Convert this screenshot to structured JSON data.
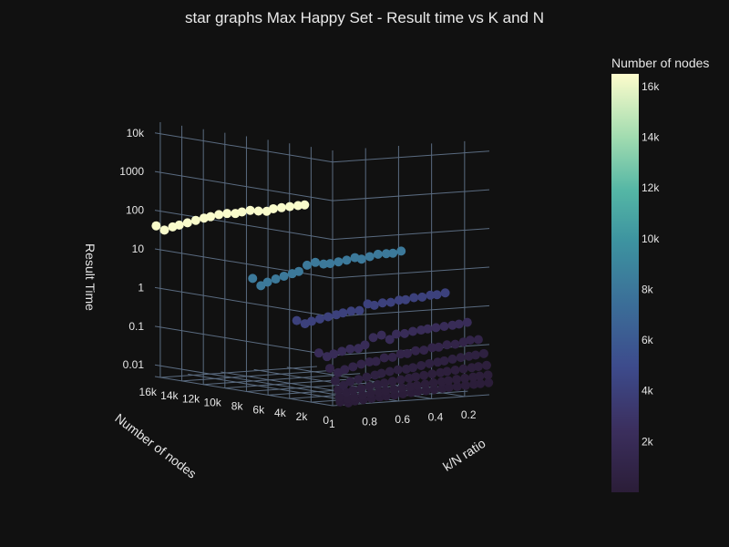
{
  "chart_data": {
    "type": "scatter3d",
    "title": "star graphs Max Happy Set - Result time vs K and N",
    "x_axis": {
      "label": "k/N ratio",
      "ticks": [
        "0.2",
        "0.4",
        "0.6",
        "0.8",
        "1"
      ]
    },
    "y_axis": {
      "label": "Number of nodes",
      "ticks": [
        "0",
        "2k",
        "4k",
        "6k",
        "8k",
        "10k",
        "12k",
        "14k",
        "16k"
      ]
    },
    "z_axis": {
      "label": "Result Time",
      "scale": "log",
      "ticks": [
        "0.01",
        "0.1",
        "1",
        "10",
        "100",
        "1000",
        "10k"
      ],
      "range": [
        0.005,
        20000
      ]
    },
    "colorbar": {
      "title": "Number of nodes",
      "ticks": [
        "2k",
        "4k",
        "6k",
        "8k",
        "10k",
        "12k",
        "14k",
        "16k"
      ],
      "range": [
        0,
        16500
      ]
    },
    "series": [
      {
        "n": 16384,
        "k_ratio": [
          1.0,
          0.95,
          0.9,
          0.86,
          0.81,
          0.76,
          0.71,
          0.67,
          0.62,
          0.57,
          0.52,
          0.48,
          0.43,
          0.38,
          0.33,
          0.29,
          0.24,
          0.19,
          0.14,
          0.1
        ],
        "time": [
          40,
          30,
          35,
          38,
          42,
          47,
          52,
          55,
          60,
          62,
          60,
          64,
          68,
          63,
          60,
          68,
          70,
          72,
          74,
          75
        ]
      },
      {
        "n": 8192,
        "k_ratio": [
          0.95,
          0.9,
          0.86,
          0.81,
          0.76,
          0.71,
          0.67,
          0.62,
          0.57,
          0.52,
          0.48,
          0.43,
          0.38,
          0.33,
          0.29,
          0.24,
          0.19,
          0.14,
          0.1,
          0.05
        ],
        "time": [
          4,
          2.5,
          3,
          3.5,
          4,
          4.5,
          5,
          7,
          8,
          7,
          7,
          7.5,
          8,
          9,
          8,
          9,
          10,
          10,
          10,
          11
        ]
      },
      {
        "n": 4096,
        "k_ratio": [
          0.95,
          0.9,
          0.86,
          0.81,
          0.76,
          0.71,
          0.67,
          0.62,
          0.57,
          0.52,
          0.48,
          0.43,
          0.38,
          0.33,
          0.29,
          0.24,
          0.19,
          0.14,
          0.1,
          0.05
        ],
        "time": [
          0.5,
          0.4,
          0.45,
          0.5,
          0.55,
          0.6,
          0.65,
          0.7,
          0.7,
          1.0,
          0.9,
          1.0,
          1.0,
          1.1,
          1.1,
          1.2,
          1.2,
          1.3,
          1.3,
          1.4
        ]
      },
      {
        "n": 2048,
        "k_ratio": [
          0.95,
          0.9,
          0.86,
          0.81,
          0.76,
          0.71,
          0.67,
          0.62,
          0.57,
          0.52,
          0.48,
          0.43,
          0.38,
          0.33,
          0.29,
          0.24,
          0.19,
          0.14,
          0.1,
          0.05
        ],
        "time": [
          0.09,
          0.07,
          0.08,
          0.09,
          0.1,
          0.1,
          0.12,
          0.18,
          0.2,
          0.15,
          0.2,
          0.2,
          0.22,
          0.23,
          0.24,
          0.25,
          0.26,
          0.27,
          0.28,
          0.3
        ]
      },
      {
        "n": 1024,
        "k_ratio": [
          0.95,
          0.9,
          0.86,
          0.81,
          0.76,
          0.71,
          0.67,
          0.62,
          0.57,
          0.52,
          0.48,
          0.43,
          0.38,
          0.33,
          0.29,
          0.24,
          0.19,
          0.14,
          0.1,
          0.05
        ],
        "time": [
          0.04,
          0.03,
          0.035,
          0.04,
          0.045,
          0.05,
          0.05,
          0.06,
          0.06,
          0.07,
          0.07,
          0.08,
          0.08,
          0.09,
          0.09,
          0.1,
          0.1,
          0.11,
          0.12,
          0.12
        ]
      },
      {
        "n": 512,
        "k_ratio": [
          0.95,
          0.9,
          0.86,
          0.81,
          0.76,
          0.71,
          0.67,
          0.62,
          0.57,
          0.52,
          0.48,
          0.43,
          0.38,
          0.33,
          0.29,
          0.24,
          0.19,
          0.14,
          0.1,
          0.05
        ],
        "time": [
          0.02,
          0.015,
          0.018,
          0.02,
          0.022,
          0.024,
          0.026,
          0.028,
          0.03,
          0.03,
          0.032,
          0.035,
          0.038,
          0.04,
          0.042,
          0.045,
          0.048,
          0.05,
          0.052,
          0.055
        ]
      },
      {
        "n": 256,
        "k_ratio": [
          0.95,
          0.9,
          0.86,
          0.81,
          0.76,
          0.71,
          0.67,
          0.62,
          0.57,
          0.52,
          0.48,
          0.43,
          0.38,
          0.33,
          0.29,
          0.24,
          0.19,
          0.14,
          0.1,
          0.05
        ],
        "time": [
          0.012,
          0.01,
          0.011,
          0.012,
          0.013,
          0.014,
          0.015,
          0.016,
          0.017,
          0.018,
          0.019,
          0.02,
          0.021,
          0.022,
          0.023,
          0.024,
          0.025,
          0.026,
          0.027,
          0.028
        ]
      },
      {
        "n": 128,
        "k_ratio": [
          0.95,
          0.9,
          0.86,
          0.81,
          0.76,
          0.71,
          0.67,
          0.62,
          0.57,
          0.52,
          0.48,
          0.43,
          0.38,
          0.33,
          0.29,
          0.24,
          0.19,
          0.14,
          0.1,
          0.05
        ],
        "time": [
          0.008,
          0.007,
          0.0075,
          0.008,
          0.0085,
          0.009,
          0.0095,
          0.01,
          0.0105,
          0.011,
          0.0115,
          0.012,
          0.0125,
          0.013,
          0.0135,
          0.014,
          0.0145,
          0.015,
          0.0155,
          0.016
        ]
      },
      {
        "n": 64,
        "k_ratio": [
          0.95,
          0.9,
          0.86,
          0.81,
          0.76,
          0.71,
          0.67,
          0.62,
          0.57,
          0.52,
          0.48,
          0.43,
          0.38,
          0.33,
          0.29,
          0.24,
          0.19,
          0.14,
          0.1,
          0.05
        ],
        "time": [
          0.006,
          0.0055,
          0.006,
          0.0062,
          0.0065,
          0.0068,
          0.007,
          0.0072,
          0.0075,
          0.0078,
          0.008,
          0.0082,
          0.0085,
          0.0088,
          0.009,
          0.0092,
          0.0095,
          0.0098,
          0.01,
          0.0102
        ]
      }
    ],
    "colors": {
      "background": "#111111",
      "grid": "#5a6b80",
      "text": "#e6e6e6"
    }
  }
}
